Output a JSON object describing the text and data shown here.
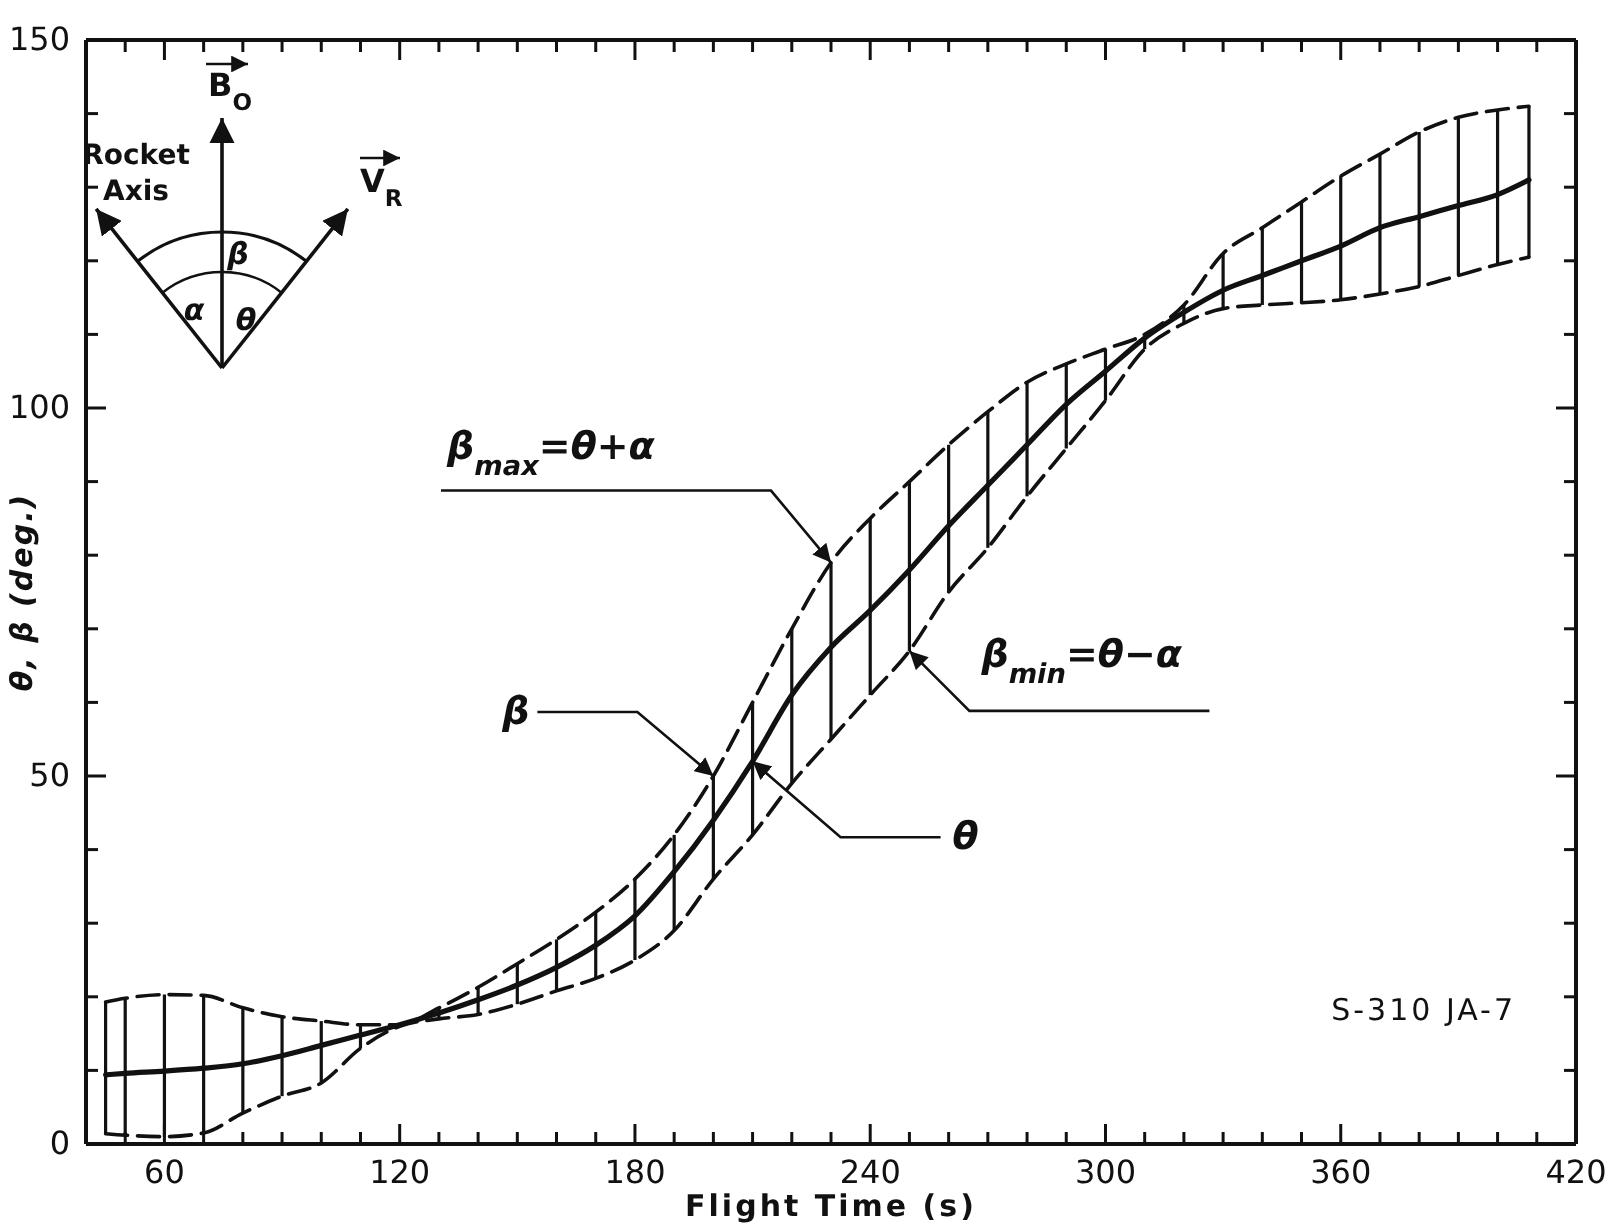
{
  "chart_data": {
    "type": "line",
    "xlabel": "Flight Time (s)",
    "ylabel": "θ, β (deg.)",
    "xlim": [
      40,
      420
    ],
    "ylim": [
      0,
      150
    ],
    "xticks": [
      {
        "value": 50,
        "label": null
      },
      60,
      {
        "value": 70,
        "label": null
      },
      {
        "value": 80,
        "label": null
      },
      {
        "value": 90,
        "label": null
      },
      {
        "value": 100,
        "label": null
      },
      {
        "value": 110,
        "label": null
      },
      120,
      {
        "value": 130,
        "label": null
      },
      {
        "value": 140,
        "label": null
      },
      {
        "value": 150,
        "label": null
      },
      {
        "value": 160,
        "label": null
      },
      {
        "value": 170,
        "label": null
      },
      180,
      {
        "value": 190,
        "label": null
      },
      {
        "value": 200,
        "label": null
      },
      {
        "value": 210,
        "label": null
      },
      {
        "value": 220,
        "label": null
      },
      {
        "value": 230,
        "label": null
      },
      240,
      {
        "value": 250,
        "label": null
      },
      {
        "value": 260,
        "label": null
      },
      {
        "value": 270,
        "label": null
      },
      {
        "value": 280,
        "label": null
      },
      {
        "value": 290,
        "label": null
      },
      300,
      {
        "value": 310,
        "label": null
      },
      {
        "value": 320,
        "label": null
      },
      {
        "value": 330,
        "label": null
      },
      {
        "value": 340,
        "label": null
      },
      {
        "value": 350,
        "label": null
      },
      360,
      {
        "value": 370,
        "label": null
      },
      {
        "value": 380,
        "label": null
      },
      {
        "value": 390,
        "label": null
      },
      {
        "value": 400,
        "label": null
      },
      {
        "value": 410,
        "label": null
      },
      420
    ],
    "yticks": [
      0,
      {
        "value": 10,
        "label": null
      },
      {
        "value": 20,
        "label": null
      },
      {
        "value": 30,
        "label": null
      },
      {
        "value": 40,
        "label": null
      },
      50,
      {
        "value": 60,
        "label": null
      },
      {
        "value": 70,
        "label": null
      },
      {
        "value": 80,
        "label": null
      },
      {
        "value": 90,
        "label": null
      },
      100,
      {
        "value": 110,
        "label": null
      },
      {
        "value": 120,
        "label": null
      },
      {
        "value": 130,
        "label": null
      },
      {
        "value": 140,
        "label": null
      },
      150
    ],
    "grid": false,
    "marker": "none",
    "x": [
      45,
      50,
      60,
      70,
      80,
      90,
      100,
      110,
      120,
      130,
      140,
      150,
      160,
      170,
      180,
      190,
      200,
      210,
      220,
      230,
      240,
      250,
      260,
      270,
      280,
      290,
      300,
      310,
      320,
      330,
      340,
      350,
      360,
      370,
      380,
      390,
      400,
      408
    ],
    "series": [
      {
        "color": "#111111",
        "line_style": "solid",
        "values": [
          9.4,
          9.6,
          9.9,
          10.3,
          10.9,
          12,
          13.4,
          14.8,
          16.2,
          17.8,
          19.6,
          21.6,
          24,
          27,
          31,
          37,
          44,
          52,
          61,
          67.5,
          72.5,
          78,
          84,
          89.5,
          95,
          100.5,
          105,
          109.5,
          113,
          116,
          118,
          120,
          122,
          124.5,
          126,
          127.5,
          129,
          131
        ],
        "errors": [
          [
            1.4,
            19.3
          ],
          [
            1.2,
            19.8
          ],
          [
            1,
            20.3
          ],
          [
            1.5,
            20.2
          ],
          [
            4.2,
            18.5
          ],
          [
            6.5,
            17.3
          ],
          [
            8.3,
            16.7
          ],
          [
            13,
            16.2
          ],
          null,
          [
            17,
            18.5
          ],
          [
            17.6,
            21.3
          ],
          [
            19,
            24.5
          ],
          [
            20.8,
            27.8
          ],
          [
            22.5,
            31.5
          ],
          [
            25,
            36
          ],
          [
            29,
            42
          ],
          [
            36,
            50
          ],
          [
            42,
            60
          ],
          [
            49,
            70
          ],
          [
            55,
            79
          ],
          [
            61,
            85
          ],
          [
            67,
            90
          ],
          [
            75,
            95
          ],
          [
            81,
            99.5
          ],
          [
            88,
            103.5
          ],
          [
            94.5,
            106
          ],
          [
            101,
            108
          ],
          [
            108,
            110
          ],
          [
            111.5,
            114
          ],
          [
            113.5,
            121
          ],
          [
            114,
            124.5
          ],
          [
            114.3,
            128
          ],
          [
            114.7,
            131.5
          ],
          [
            115.5,
            134.5
          ],
          [
            116.5,
            137.5
          ],
          [
            118,
            139.5
          ],
          [
            119.5,
            140.5
          ],
          [
            120.5,
            141
          ]
        ]
      },
      {
        "color": "#111111",
        "line_style": "dashed",
        "values": [
          19.3,
          19.8,
          20.3,
          20.2,
          18.5,
          17.3,
          16.7,
          16.2,
          16.2,
          18.5,
          21.3,
          24.5,
          27.8,
          31.5,
          36,
          42,
          50,
          60,
          70,
          79,
          85,
          90,
          95,
          99.5,
          103.5,
          106,
          108,
          110,
          114,
          121,
          124.5,
          128,
          131.5,
          134.5,
          137.5,
          139.5,
          140.5,
          141
        ]
      },
      {
        "color": "#111111",
        "line_style": "dashed",
        "values": [
          1.4,
          1.2,
          1,
          1.5,
          4.2,
          6.5,
          8.3,
          13,
          16,
          17,
          17.6,
          19,
          20.8,
          22.5,
          25,
          29,
          36,
          42,
          49,
          55,
          61,
          67,
          75,
          81,
          88,
          94.5,
          101,
          108,
          111.5,
          113.5,
          114,
          114.3,
          114.7,
          115.5,
          116.5,
          118,
          119.5,
          120.5
        ]
      }
    ],
    "annotations": [
      {
        "text": "β$_{max}$=θ+α",
        "x": 230,
        "y": 79
      },
      {
        "text": "β$_{min}$=θ−α",
        "x": 250,
        "y": 67
      },
      {
        "text": "β",
        "x": 200,
        "y": 50
      },
      {
        "text": "θ",
        "x": 210,
        "y": 52
      },
      "S-310 JA-7",
      "Rocket Axis",
      "B$_{O}$",
      "V$_{R}$",
      "α",
      "β",
      "θ"
    ]
  }
}
